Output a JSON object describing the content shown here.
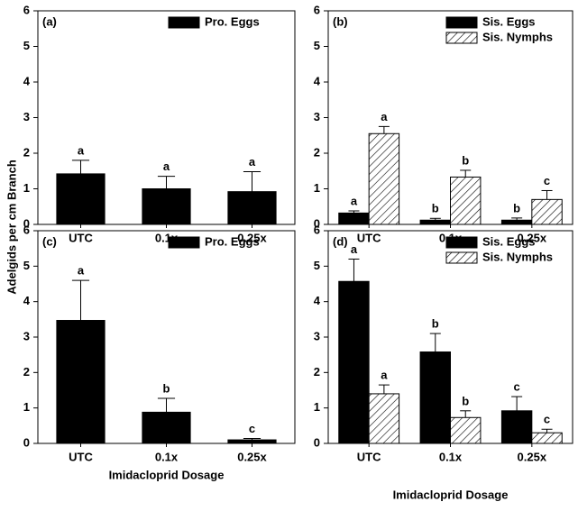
{
  "ylabel": "Adelgids per cm Branch",
  "chart_data": [
    {
      "type": "bar",
      "label": "(a)",
      "categories": [
        "UTC",
        "0.1x",
        "0.25x"
      ],
      "series": [
        {
          "name": "Pro. Eggs",
          "color": "#000000",
          "pattern": "solid",
          "values": [
            1.42,
            1.0,
            0.92
          ],
          "errors": [
            0.38,
            0.35,
            0.56
          ],
          "letters": [
            "a",
            "a",
            "a"
          ]
        }
      ],
      "ylim": [
        0,
        6
      ],
      "yticks": [
        0,
        1,
        2,
        3,
        4,
        5,
        6
      ]
    },
    {
      "type": "bar",
      "label": "(b)",
      "categories": [
        "UTC",
        "0.1x",
        "0.25x"
      ],
      "series": [
        {
          "name": "Sis. Eggs",
          "color": "#000000",
          "pattern": "solid",
          "values": [
            0.32,
            0.12,
            0.12
          ],
          "errors": [
            0.06,
            0.05,
            0.06
          ],
          "letters": [
            "a",
            "b",
            "b"
          ]
        },
        {
          "name": "Sis. Nymphs",
          "color": "#000000",
          "pattern": "hatch",
          "values": [
            2.55,
            1.33,
            0.7
          ],
          "errors": [
            0.2,
            0.19,
            0.25
          ],
          "letters": [
            "a",
            "b",
            "c"
          ]
        }
      ],
      "ylim": [
        0,
        6
      ],
      "yticks": [
        0,
        1,
        2,
        3,
        4,
        5,
        6
      ]
    },
    {
      "type": "bar",
      "label": "(c)",
      "xlabel": "Imidacloprid Dosage",
      "categories": [
        "UTC",
        "0.1x",
        "0.25x"
      ],
      "series": [
        {
          "name": "Pro. Eggs",
          "color": "#000000",
          "pattern": "solid",
          "values": [
            3.47,
            0.88,
            0.1
          ],
          "errors": [
            1.13,
            0.39,
            0.04
          ],
          "letters": [
            "a",
            "b",
            "c"
          ]
        }
      ],
      "ylim": [
        0,
        6
      ],
      "yticks": [
        0,
        1,
        2,
        3,
        4,
        5,
        6
      ]
    },
    {
      "type": "bar",
      "label": "(d)",
      "xlabel": "Imidacloprid Dosage",
      "categories": [
        "UTC",
        "0.1x",
        "0.25x"
      ],
      "series": [
        {
          "name": "Sis. Eggs",
          "color": "#000000",
          "pattern": "solid",
          "values": [
            4.57,
            2.58,
            0.92
          ],
          "errors": [
            0.63,
            0.52,
            0.4
          ],
          "letters": [
            "a",
            "b",
            "c"
          ]
        },
        {
          "name": "Sis. Nymphs",
          "color": "#000000",
          "pattern": "hatch",
          "values": [
            1.4,
            0.73,
            0.3
          ],
          "errors": [
            0.25,
            0.19,
            0.1
          ],
          "letters": [
            "a",
            "b",
            "c"
          ]
        }
      ],
      "ylim": [
        0,
        6
      ],
      "yticks": [
        0,
        1,
        2,
        3,
        4,
        5,
        6
      ]
    }
  ]
}
